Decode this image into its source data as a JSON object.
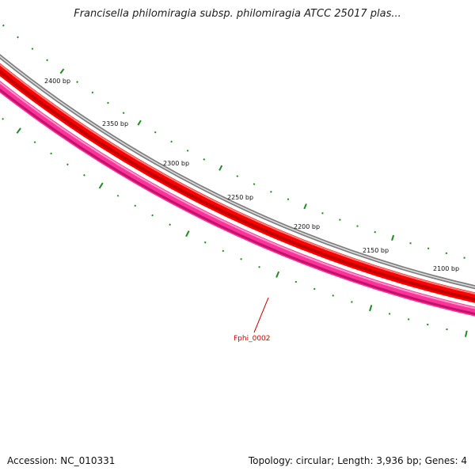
{
  "title": "Francisella philomiragia subsp. philomiragia ATCC 25017 plas...",
  "footer": {
    "accession": "Accession: NC_010331",
    "summary": "Topology: circular; Length: 3,936 bp; Genes: 4"
  },
  "map": {
    "ticks": [
      {
        "label": "2400 bp"
      },
      {
        "label": "2350 bp"
      },
      {
        "label": "2300 bp"
      },
      {
        "label": "2250 bp"
      },
      {
        "label": "2200 bp"
      },
      {
        "label": "2150 bp"
      },
      {
        "label": "2100 bp"
      }
    ],
    "genes": [
      {
        "label": "Fphi_0002",
        "color": "#cc0000"
      }
    ],
    "colors": {
      "backbone": "#808080",
      "forward_gene": "#ff0000",
      "reverse_gene": "#ff3399",
      "tick": "#228b22"
    }
  }
}
